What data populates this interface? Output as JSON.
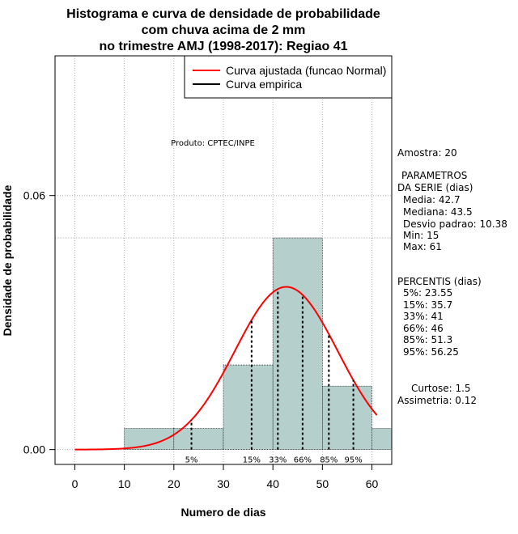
{
  "chart_data": {
    "type": "histogram",
    "title": [
      "Histograma e curva de densidade de probabilidade",
      "com chuva acima de 2 mm",
      "no trimestre AMJ (1998-2017): Regiao 41"
    ],
    "xlabel": "Numero de dias",
    "ylabel": "Densidade de probabilidade",
    "xlim": [
      -4,
      64
    ],
    "ylim": [
      -0.0035,
      0.093
    ],
    "xticks": [
      0,
      10,
      20,
      30,
      40,
      50,
      60
    ],
    "yticks": [
      0.0,
      0.06
    ],
    "ytick_labels": [
      "0.00",
      "0.06"
    ],
    "bins": [
      {
        "from": 10,
        "to": 20,
        "density": 0.005
      },
      {
        "from": 20,
        "to": 30,
        "density": 0.005
      },
      {
        "from": 30,
        "to": 40,
        "density": 0.02
      },
      {
        "from": 40,
        "to": 50,
        "density": 0.05
      },
      {
        "from": 50,
        "to": 60,
        "density": 0.015
      },
      {
        "from": 60,
        "to": 64,
        "density": 0.005
      }
    ],
    "hline": 0.05,
    "normal_fit": {
      "mean": 42.7,
      "sd": 10.38,
      "x_from": 0,
      "x_to": 61
    },
    "percentile_lines": [
      {
        "label": "5%",
        "x": 23.55
      },
      {
        "label": "15%",
        "x": 35.7
      },
      {
        "label": "33%",
        "x": 41
      },
      {
        "label": "66%",
        "x": 46
      },
      {
        "label": "85%",
        "x": 51.3
      },
      {
        "label": "95%",
        "x": 56.25
      }
    ],
    "legend": [
      {
        "label": "Curva ajustada (funcao Normal)",
        "color": "#ff0000"
      },
      {
        "label": "Curva empirica",
        "color": "#000000"
      }
    ],
    "product_label": "Produto: CPTEC/INPE",
    "colors": {
      "bar_fill": "#b5cfcd",
      "curve": "#ff0000",
      "grid": "#b0b0b0"
    }
  },
  "stats": {
    "amostra": "Amostra: 20",
    "params_header_1": "PARAMETROS",
    "params_header_2": "DA SERIE (dias)",
    "media": "Media: 42.7",
    "mediana": "Mediana: 43.5",
    "desvio": "Desvio padrao: 10.38",
    "min": "Min: 15",
    "max": "Max: 61",
    "percentis_header": "PERCENTIS (dias)",
    "p5": "5%: 23.55",
    "p15": "15%: 35.7",
    "p33": "33%: 41",
    "p66": "66%: 46",
    "p85": "85%: 51.3",
    "p95": "95%: 56.25",
    "curtose": "Curtose: 1.5",
    "assimetria": "Assimetria: 0.12"
  }
}
